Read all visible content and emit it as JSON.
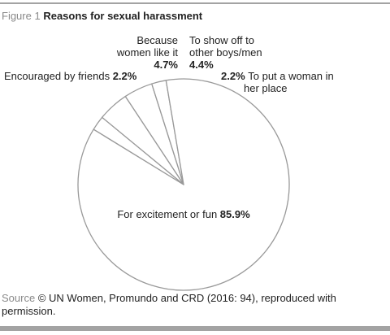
{
  "figure": {
    "number": "Figure 1",
    "title": "Reasons for sexual harassment"
  },
  "source": {
    "label": "Source",
    "text": "© UN Women, Promundo and CRD (2016: 94), reproduced with permission."
  },
  "colors": {
    "rule": "#a3a3a3",
    "muted_text": "#8a8a8a",
    "pie_stroke": "#999999",
    "pie_fill": "#ffffff",
    "text": "#222222"
  },
  "chart_data": {
    "type": "pie",
    "title": "Reasons for sexual harassment",
    "slices": [
      {
        "label": "To show off to other boys/men",
        "label_lines": [
          "To show off to",
          "other boys/men"
        ],
        "value_label": "4.4%",
        "value": 4.4
      },
      {
        "label": "To put a woman in her place",
        "label_lines": [
          "To put a woman in",
          "her place"
        ],
        "value_label": "2.2%",
        "value": 2.2
      },
      {
        "label": "For excitement or fun",
        "label_lines": [
          "For excitement or fun"
        ],
        "value_label": "85.9%",
        "value": 85.9
      },
      {
        "label": "Encouraged by friends",
        "label_lines": [
          "Encouraged by friends"
        ],
        "value_label": "2.2%",
        "value": 2.2
      },
      {
        "label": "Because women like it",
        "label_lines": [
          "Because",
          "women like it"
        ],
        "value_label": "4.7%",
        "value": 4.7
      }
    ]
  }
}
